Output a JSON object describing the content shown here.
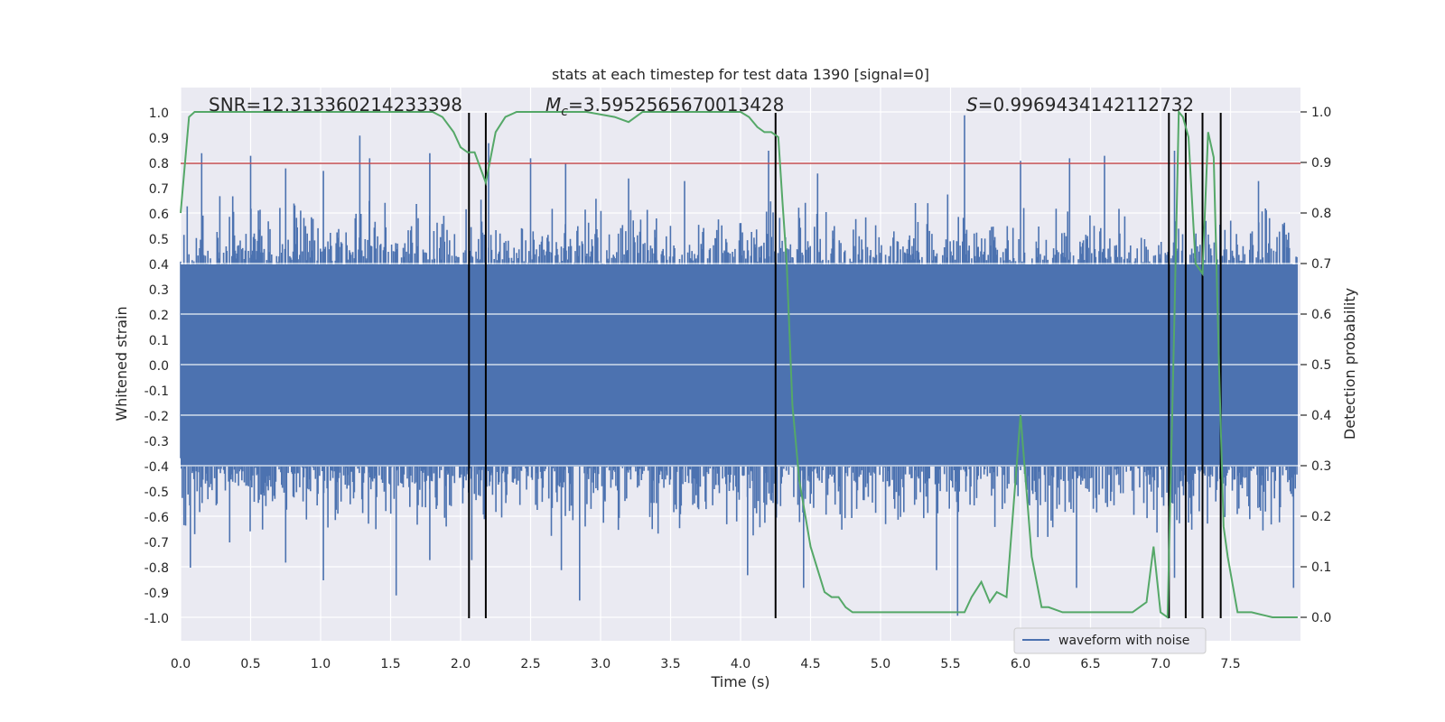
{
  "chart_data": {
    "type": "line",
    "title": "stats at each timestep for test data 1390 [signal=0]",
    "xlabel": "Time (s)",
    "ylabel": "Whitened strain",
    "y2label": "Detection probability",
    "xlim": [
      0.0,
      8.0
    ],
    "ylim": [
      -1.1,
      1.1
    ],
    "y2lim": [
      -0.05,
      1.05
    ],
    "x_ticks": [
      "0.0",
      "0.5",
      "1.0",
      "1.5",
      "2.0",
      "2.5",
      "3.0",
      "3.5",
      "4.0",
      "4.5",
      "5.0",
      "5.5",
      "6.0",
      "6.5",
      "7.0",
      "7.5"
    ],
    "y_ticks": [
      "1.0",
      "0.9",
      "0.8",
      "0.7",
      "0.6",
      "0.5",
      "0.4",
      "0.3",
      "0.2",
      "0.1",
      "0.0",
      "-0.1",
      "-0.2",
      "-0.3",
      "-0.4",
      "-0.5",
      "-0.6",
      "-0.7",
      "-0.8",
      "-0.9",
      "-1.0"
    ],
    "y2_ticks": [
      "1.0",
      "0.9",
      "0.8",
      "0.7",
      "0.6",
      "0.5",
      "0.4",
      "0.3",
      "0.2",
      "0.1",
      "0.0"
    ],
    "grid": true,
    "legend_position": "lower-right",
    "annotations": {
      "snr": "SNR=12.313360214233398",
      "mc_label": "M",
      "mc_sub": "c",
      "mc_value": "=3.5952565670013428",
      "s_label": "S",
      "s_value": "=0.9969434142112732"
    },
    "series": [
      {
        "name": "waveform with noise",
        "axis": "left",
        "color": "#4c72b0",
        "style": "dense noise, envelope approx -0.4..0.4 with spikes up to ~0.9 and down to ~-0.9",
        "peaks_pos": [
          [
            0.15,
            0.84
          ],
          [
            0.28,
            0.67
          ],
          [
            0.5,
            0.83
          ],
          [
            0.75,
            0.78
          ],
          [
            1.02,
            0.77
          ],
          [
            1.28,
            0.91
          ],
          [
            1.35,
            0.82
          ],
          [
            1.78,
            0.84
          ],
          [
            2.2,
            0.88
          ],
          [
            2.5,
            0.82
          ],
          [
            2.75,
            0.8
          ],
          [
            3.2,
            0.74
          ],
          [
            3.6,
            0.73
          ],
          [
            4.2,
            0.85
          ],
          [
            4.55,
            0.76
          ],
          [
            5.6,
            0.99
          ],
          [
            6.0,
            0.81
          ],
          [
            6.35,
            0.82
          ],
          [
            6.6,
            0.83
          ],
          [
            7.1,
            0.85
          ],
          [
            7.7,
            0.73
          ]
        ],
        "peaks_neg": [
          [
            0.07,
            -0.8
          ],
          [
            0.35,
            -0.7
          ],
          [
            0.75,
            -0.78
          ],
          [
            1.02,
            -0.85
          ],
          [
            1.54,
            -0.91
          ],
          [
            1.78,
            -0.77
          ],
          [
            2.08,
            -0.77
          ],
          [
            2.72,
            -0.81
          ],
          [
            2.85,
            -0.93
          ],
          [
            4.05,
            -0.83
          ],
          [
            4.45,
            -0.88
          ],
          [
            5.4,
            -0.81
          ],
          [
            5.55,
            -0.99
          ],
          [
            6.4,
            -0.88
          ],
          [
            7.1,
            -0.84
          ],
          [
            7.95,
            -0.88
          ]
        ]
      },
      {
        "name": "detection probability",
        "axis": "right",
        "color": "#55a868",
        "x": [
          0.0,
          0.06,
          0.1,
          0.25,
          0.5,
          1.0,
          1.5,
          1.8,
          1.87,
          1.95,
          2.0,
          2.05,
          2.1,
          2.18,
          2.25,
          2.32,
          2.4,
          2.55,
          2.7,
          2.9,
          3.1,
          3.2,
          3.3,
          3.5,
          3.8,
          4.0,
          4.06,
          4.12,
          4.17,
          4.22,
          4.27,
          4.3,
          4.33,
          4.37,
          4.42,
          4.5,
          4.6,
          4.65,
          4.7,
          4.75,
          4.8,
          4.85,
          5.0,
          5.2,
          5.5,
          5.6,
          5.65,
          5.72,
          5.78,
          5.83,
          5.9,
          6.0,
          6.08,
          6.15,
          6.2,
          6.3,
          6.5,
          6.8,
          6.9,
          6.95,
          7.0,
          7.05,
          7.1,
          7.13,
          7.16,
          7.2,
          7.25,
          7.3,
          7.34,
          7.38,
          7.42,
          7.45,
          7.48,
          7.55,
          7.65,
          7.8,
          7.98
        ],
        "y": [
          0.8,
          0.99,
          1.0,
          1.0,
          1.0,
          1.0,
          1.0,
          1.0,
          0.99,
          0.96,
          0.93,
          0.92,
          0.92,
          0.86,
          0.96,
          0.99,
          1.0,
          1.0,
          1.0,
          1.0,
          0.99,
          0.98,
          1.0,
          1.0,
          1.0,
          1.0,
          0.99,
          0.97,
          0.96,
          0.96,
          0.95,
          0.82,
          0.7,
          0.42,
          0.27,
          0.14,
          0.05,
          0.04,
          0.04,
          0.02,
          0.01,
          0.01,
          0.01,
          0.01,
          0.01,
          0.01,
          0.04,
          0.07,
          0.03,
          0.05,
          0.04,
          0.4,
          0.12,
          0.02,
          0.02,
          0.01,
          0.01,
          0.01,
          0.03,
          0.14,
          0.01,
          0.0,
          0.6,
          1.0,
          0.99,
          0.95,
          0.7,
          0.68,
          0.96,
          0.91,
          0.48,
          0.18,
          0.12,
          0.01,
          0.01,
          0.0,
          0.0
        ]
      }
    ],
    "hlines": [
      {
        "y": 0.8,
        "axis": "left",
        "color": "#c44e52"
      }
    ],
    "vlines": [
      2.06,
      2.18,
      4.25,
      7.06,
      7.18,
      7.3,
      7.43
    ]
  }
}
